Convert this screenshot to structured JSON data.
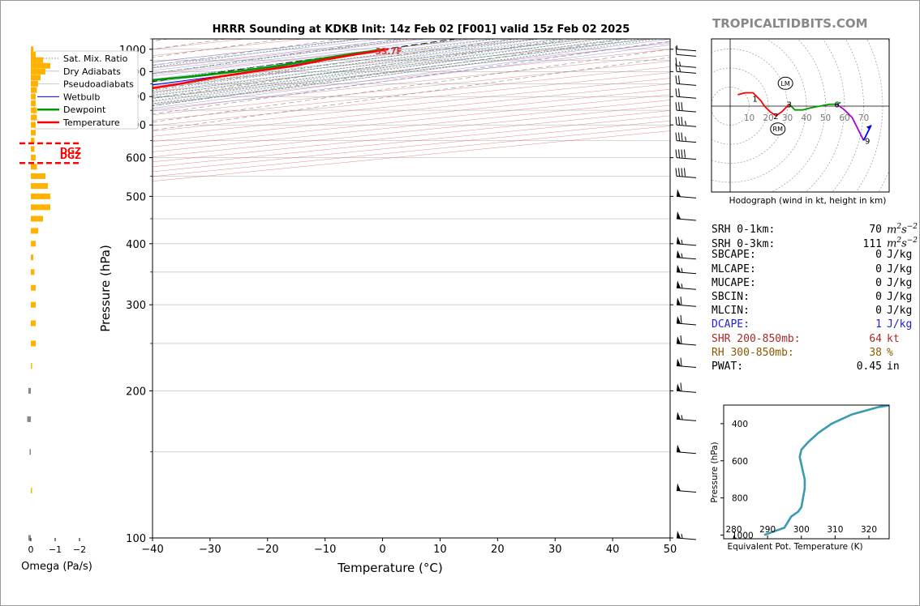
{
  "brand": "TROPICALTIDBITS.COM",
  "colors": {
    "temperature": "#ff0000",
    "dewpoint": "#009900",
    "wetbulb": "#0000ee",
    "dry_adiabat": "#e06060",
    "moist_adiabat": "#7a7ae0",
    "mixing_ratio": "#2e8b2e",
    "isotherm": "#999999",
    "omega": "#ffb300",
    "omega_neg": "#888888",
    "theta_e": "#3a9ab0",
    "dcape": "#2222cc",
    "shear": "#a52a2a",
    "rh": "#8b5a00"
  },
  "chart_data": [
    {
      "type": "line",
      "name": "skewt",
      "title": "HRRR Sounding at KDKB Init: 14z Feb 02 [F001] valid 15z Feb 02 2025",
      "xlabel": "Temperature (°C)",
      "ylabel": "Pressure (hPa)",
      "xlim": [
        -40,
        50
      ],
      "ylim": [
        1050,
        100
      ],
      "y_scale": "log",
      "x_ticks": [
        -40,
        -30,
        -20,
        -10,
        0,
        10,
        20,
        30,
        40,
        50
      ],
      "y_ticks": [
        100,
        200,
        300,
        400,
        500,
        600,
        700,
        800,
        900,
        1000
      ],
      "legend_position": "top-left",
      "legend": [
        "Sat. Mix. Ratio",
        "Dry Adiabats",
        "Pseudoadiabats",
        "Wetbulb",
        "Dewpoint",
        "Temperature"
      ],
      "mixing_ratio_labels": [
        "1",
        "2",
        "4",
        "6",
        "8",
        "10",
        "13",
        "16",
        "20",
        "24",
        "30",
        "36"
      ],
      "surface_label": "33.7F",
      "series": [
        {
          "name": "Temperature",
          "points": [
            [
              1.0,
              1000
            ],
            [
              1.8,
              975
            ],
            [
              3.0,
              950
            ],
            [
              5.2,
              925
            ],
            [
              5.0,
              900
            ],
            [
              5.4,
              880
            ],
            [
              7.4,
              850
            ],
            [
              8.2,
              825
            ],
            [
              7.6,
              800
            ],
            [
              5.8,
              775
            ],
            [
              3.2,
              750
            ],
            [
              0.8,
              725
            ],
            [
              -1.6,
              700
            ],
            [
              -4.6,
              650
            ],
            [
              -8.2,
              600
            ],
            [
              -11.6,
              550
            ],
            [
              -14.6,
              500
            ],
            [
              -17.2,
              450
            ],
            [
              -19.4,
              400
            ],
            [
              -21.0,
              350
            ],
            [
              -22.2,
              320
            ],
            [
              -22.8,
              300
            ],
            [
              -23.8,
              260
            ],
            [
              -25.8,
              230
            ],
            [
              -28.0,
              200
            ],
            [
              -32.0,
              170
            ],
            [
              -35.0,
              150
            ],
            [
              -37.0,
              130
            ],
            [
              -41.0,
              115
            ],
            [
              -45.0,
              100
            ]
          ]
        },
        {
          "name": "Wetbulb",
          "points": [
            [
              0.8,
              1000
            ],
            [
              1.6,
              975
            ],
            [
              2.6,
              950
            ],
            [
              4.2,
              925
            ],
            [
              4.6,
              900
            ],
            [
              4.8,
              880
            ],
            [
              4.0,
              850
            ],
            [
              3.2,
              825
            ],
            [
              1.8,
              800
            ],
            [
              -0.2,
              750
            ],
            [
              -2.4,
              700
            ],
            [
              -6.0,
              650
            ],
            [
              -9.4,
              600
            ],
            [
              -12.8,
              550
            ],
            [
              -15.6,
              500
            ],
            [
              -18.0,
              450
            ],
            [
              -20.4,
              400
            ],
            [
              -22.6,
              350
            ],
            [
              -23.4,
              320
            ],
            [
              -23.8,
              300
            ],
            [
              -25.0,
              260
            ],
            [
              -26.6,
              230
            ],
            [
              -28.6,
              200
            ],
            [
              -32.6,
              170
            ],
            [
              -35.4,
              150
            ],
            [
              -37.6,
              130
            ],
            [
              -41.4,
              115
            ],
            [
              -45.2,
              100
            ]
          ]
        },
        {
          "name": "Dewpoint",
          "points": [
            [
              0.4,
              1000
            ],
            [
              0.6,
              975
            ],
            [
              1.2,
              950
            ],
            [
              2.4,
              925
            ],
            [
              2.0,
              900
            ],
            [
              0.4,
              880
            ],
            [
              -4.2,
              850
            ],
            [
              -5.6,
              825
            ],
            [
              -6.8,
              800
            ],
            [
              -7.2,
              775
            ],
            [
              -7.8,
              750
            ],
            [
              -8.6,
              700
            ],
            [
              -11.0,
              650
            ],
            [
              -14.6,
              600
            ],
            [
              -19.4,
              550
            ],
            [
              -23.0,
              520
            ],
            [
              -26.6,
              500
            ],
            [
              -33.0,
              450
            ],
            [
              -38.6,
              400
            ],
            [
              -39.6,
              380
            ],
            [
              -38.6,
              350
            ],
            [
              -37.6,
              330
            ],
            [
              -34.6,
              300
            ],
            [
              -35.0,
              280
            ],
            [
              -37.6,
              250
            ],
            [
              -39.6,
              230
            ],
            [
              -37.0,
              210
            ],
            [
              -35.0,
              200
            ],
            [
              -38.6,
              180
            ],
            [
              -38.6,
              160
            ],
            [
              -39.0,
              140
            ],
            [
              -39.6,
              120
            ],
            [
              -41.0,
              100
            ]
          ]
        }
      ]
    },
    {
      "type": "bar",
      "name": "omega",
      "xlabel": "Omega (Pa/s)",
      "x_ticks": [
        "0",
        "−1",
        "−2"
      ],
      "dgz_label": "DGZ",
      "dgz_bounds_hpa": [
        585,
        642
      ],
      "pressure": [
        1000,
        975,
        950,
        925,
        900,
        875,
        850,
        825,
        800,
        775,
        750,
        725,
        700,
        675,
        650,
        625,
        600,
        575,
        550,
        525,
        500,
        475,
        450,
        425,
        400,
        375,
        350,
        325,
        300,
        275,
        250,
        225,
        200,
        175,
        150,
        125,
        100
      ],
      "values": [
        -0.1,
        -0.2,
        -0.5,
        -0.8,
        -0.6,
        -0.4,
        -0.3,
        -0.25,
        -0.2,
        -0.2,
        -0.25,
        -0.25,
        -0.2,
        -0.2,
        -0.15,
        -0.15,
        -0.2,
        -0.25,
        -0.6,
        -0.7,
        -0.8,
        -0.8,
        -0.5,
        -0.3,
        -0.2,
        -0.1,
        -0.15,
        -0.2,
        -0.2,
        -0.2,
        -0.2,
        -0.05,
        0.1,
        0.15,
        0.05,
        -0.05,
        0.1
      ]
    },
    {
      "type": "line",
      "name": "hodograph",
      "caption": "Hodograph (wind in kt, height in km)",
      "ring_labels": [
        "10",
        "20",
        "30",
        "40",
        "50",
        "60",
        "70"
      ],
      "markers": [
        "LM",
        "RM"
      ],
      "storm_motion": {
        "LM": [
          29,
          12
        ],
        "RM": [
          25,
          -12
        ]
      },
      "height_labels": [
        {
          "km": "1",
          "u": 13,
          "v": 4
        },
        {
          "km": "2",
          "u": 24,
          "v": -5
        },
        {
          "km": "3",
          "u": 31,
          "v": 1
        },
        {
          "km": "6",
          "u": 56,
          "v": 1
        },
        {
          "km": "9",
          "u": 72,
          "v": -18
        }
      ],
      "segments": [
        {
          "color": "#ff0000",
          "points": [
            [
              4,
              6
            ],
            [
              8,
              7
            ],
            [
              12,
              7
            ],
            [
              14,
              5
            ],
            [
              16,
              3
            ],
            [
              18,
              0
            ],
            [
              21,
              -3
            ],
            [
              24,
              -5
            ],
            [
              27,
              -3
            ],
            [
              30,
              0
            ],
            [
              31,
              1
            ]
          ]
        },
        {
          "color": "#009900",
          "points": [
            [
              31,
              1
            ],
            [
              34,
              -2
            ],
            [
              38,
              -2
            ],
            [
              42,
              -1
            ],
            [
              47,
              0
            ],
            [
              52,
              1
            ],
            [
              56,
              1
            ],
            [
              58,
              2
            ]
          ]
        },
        {
          "color": "#aa00cc",
          "points": [
            [
              56,
              1
            ],
            [
              60,
              -2
            ],
            [
              64,
              -6
            ],
            [
              66,
              -10
            ],
            [
              68,
              -14
            ],
            [
              70,
              -18
            ]
          ]
        },
        {
          "color": "#0000ee",
          "points": [
            [
              70,
              -18
            ],
            [
              72,
              -14
            ],
            [
              74,
              -10
            ]
          ]
        }
      ]
    },
    {
      "type": "line",
      "name": "theta_e",
      "xlabel": "Equivalent Pot. Temperature (K)",
      "ylabel": "Pressure (hPa)",
      "xlim": [
        277,
        326
      ],
      "ylim": [
        1020,
        300
      ],
      "x_ticks": [
        280,
        290,
        300,
        310,
        320
      ],
      "y_ticks": [
        400,
        600,
        800,
        1000
      ],
      "series": [
        {
          "name": "theta_e",
          "points": [
            [
              289,
              1000
            ],
            [
              292,
              980
            ],
            [
              295,
              960
            ],
            [
              296,
              930
            ],
            [
              297,
              900
            ],
            [
              299,
              875
            ],
            [
              300,
              850
            ],
            [
              300.5,
              800
            ],
            [
              301,
              750
            ],
            [
              301,
              700
            ],
            [
              300.5,
              660
            ],
            [
              300,
              620
            ],
            [
              299.5,
              580
            ],
            [
              300,
              540
            ],
            [
              302,
              500
            ],
            [
              305,
              450
            ],
            [
              309,
              400
            ],
            [
              315,
              350
            ],
            [
              323,
              310
            ],
            [
              330,
              290
            ]
          ]
        }
      ]
    }
  ],
  "indices": [
    {
      "label": "SRH 0-1km:",
      "value": "70",
      "unit_base": "m",
      "unit_sup1": "2",
      "unit_mid": "s",
      "unit_sup2": "−2",
      "color": "#000000"
    },
    {
      "label": "SRH 0-3km:",
      "value": "111",
      "unit_base": "m",
      "unit_sup1": "2",
      "unit_mid": "s",
      "unit_sup2": "−2",
      "color": "#000000"
    },
    {
      "label": "SBCAPE:",
      "value": "0",
      "unit": "J/kg",
      "color": "#000000"
    },
    {
      "label": "MLCAPE:",
      "value": "0",
      "unit": "J/kg",
      "color": "#000000"
    },
    {
      "label": "MUCAPE:",
      "value": "0",
      "unit": "J/kg",
      "color": "#000000"
    },
    {
      "label": "SBCIN:",
      "value": "0",
      "unit": "J/kg",
      "color": "#000000"
    },
    {
      "label": "MLCIN:",
      "value": "0",
      "unit": "J/kg",
      "color": "#000000"
    },
    {
      "label": "DCAPE:",
      "value": "1",
      "unit": "J/kg",
      "color": "#2222cc"
    },
    {
      "label": "SHR 200-850mb:",
      "value": "64",
      "unit": "kt",
      "color": "#a52a2a"
    },
    {
      "label": "RH 300-850mb:",
      "value": "38",
      "unit": "%",
      "color": "#8b5a00"
    },
    {
      "label": "PWAT:",
      "value": "0.45",
      "unit": "in",
      "color": "#000000"
    }
  ],
  "wind_barbs": [
    {
      "p": 100,
      "kt": 55
    },
    {
      "p": 125,
      "kt": 50
    },
    {
      "p": 150,
      "kt": 50
    },
    {
      "p": 175,
      "kt": 55
    },
    {
      "p": 200,
      "kt": 60
    },
    {
      "p": 225,
      "kt": 60
    },
    {
      "p": 250,
      "kt": 60
    },
    {
      "p": 275,
      "kt": 60
    },
    {
      "p": 300,
      "kt": 60
    },
    {
      "p": 325,
      "kt": 55
    },
    {
      "p": 350,
      "kt": 55
    },
    {
      "p": 375,
      "kt": 55
    },
    {
      "p": 400,
      "kt": 55
    },
    {
      "p": 450,
      "kt": 50
    },
    {
      "p": 500,
      "kt": 50
    },
    {
      "p": 550,
      "kt": 40
    },
    {
      "p": 600,
      "kt": 40
    },
    {
      "p": 650,
      "kt": 35
    },
    {
      "p": 700,
      "kt": 35
    },
    {
      "p": 750,
      "kt": 30
    },
    {
      "p": 800,
      "kt": 20
    },
    {
      "p": 850,
      "kt": 20
    },
    {
      "p": 900,
      "kt": 15
    },
    {
      "p": 925,
      "kt": 15
    },
    {
      "p": 975,
      "kt": 10
    },
    {
      "p": 1000,
      "kt": 5
    }
  ]
}
